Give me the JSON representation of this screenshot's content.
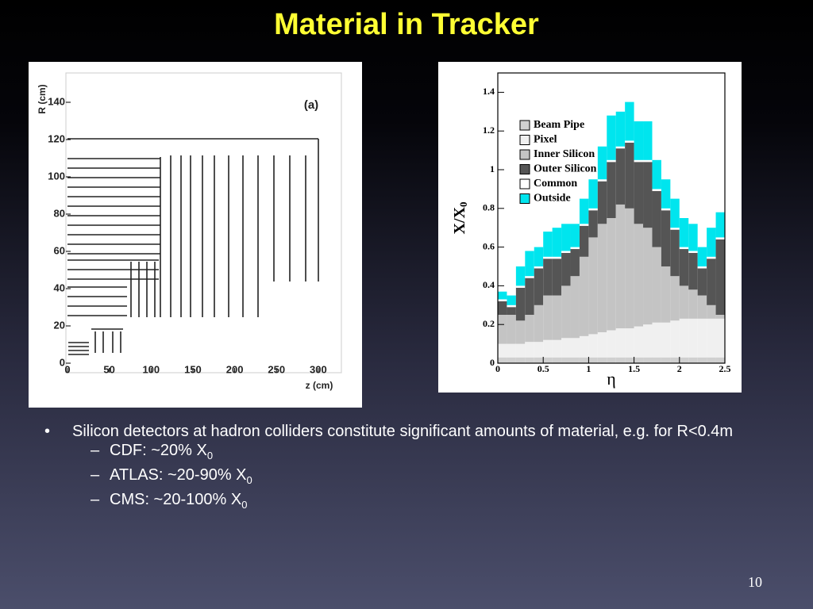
{
  "title": "Material in Tracker",
  "figure_a": {
    "panel_label": "(a)",
    "ylabel": "R (cm)",
    "xlabel": "z (cm)",
    "xticks": [
      0,
      50,
      100,
      150,
      200,
      250,
      300
    ],
    "yticks": [
      0,
      20,
      40,
      60,
      80,
      100,
      120,
      140
    ]
  },
  "chart_data": {
    "type": "histogram",
    "stacked": true,
    "xlabel": "η",
    "ylabel": {
      "main": "X/X",
      "sub": "0"
    },
    "bins": [
      0,
      0.1,
      0.2,
      0.3,
      0.4,
      0.5,
      0.6,
      0.7,
      0.8,
      0.9,
      1,
      1.1,
      1.2,
      1.3,
      1.4,
      1.5,
      1.6,
      1.7,
      1.8,
      1.9,
      2,
      2.1,
      2.2,
      2.3,
      2.4,
      2.5
    ],
    "xlim": [
      0,
      2.5
    ],
    "xticks": [
      0,
      0.5,
      1,
      1.5,
      2,
      2.5
    ],
    "ylim": [
      0,
      1.5
    ],
    "yticks": [
      0,
      0.2,
      0.4,
      0.6,
      0.8,
      1,
      1.2,
      1.4
    ],
    "legend": "upper left",
    "series": [
      {
        "name": "Beam Pipe",
        "color": "#d0d0d0",
        "values": [
          0.03,
          0.03,
          0.03,
          0.03,
          0.03,
          0.03,
          0.03,
          0.03,
          0.03,
          0.03,
          0.03,
          0.03,
          0.03,
          0.03,
          0.03,
          0.03,
          0.03,
          0.03,
          0.03,
          0.03,
          0.03,
          0.03,
          0.03,
          0.03,
          0.03
        ]
      },
      {
        "name": "Pixel",
        "color": "#f0f0f0",
        "values": [
          0.07,
          0.07,
          0.07,
          0.08,
          0.08,
          0.09,
          0.09,
          0.1,
          0.1,
          0.11,
          0.12,
          0.13,
          0.14,
          0.15,
          0.15,
          0.16,
          0.17,
          0.18,
          0.18,
          0.19,
          0.2,
          0.2,
          0.2,
          0.2,
          0.2
        ]
      },
      {
        "name": "Inner Silicon",
        "color": "#c4c4c4",
        "values": [
          0.15,
          0.15,
          0.12,
          0.14,
          0.19,
          0.23,
          0.23,
          0.27,
          0.32,
          0.41,
          0.5,
          0.56,
          0.58,
          0.64,
          0.62,
          0.53,
          0.5,
          0.39,
          0.29,
          0.23,
          0.17,
          0.15,
          0.12,
          0.07,
          0.02
        ]
      },
      {
        "name": "Outer Silicon",
        "color": "#555555",
        "values": [
          0.07,
          0.04,
          0.17,
          0.19,
          0.19,
          0.19,
          0.19,
          0.17,
          0.14,
          0.16,
          0.14,
          0.22,
          0.29,
          0.29,
          0.34,
          0.32,
          0.34,
          0.29,
          0.29,
          0.24,
          0.19,
          0.19,
          0.14,
          0.24,
          0.39
        ]
      },
      {
        "name": "Common",
        "color": "#ffffff",
        "values": [
          0.01,
          0.01,
          0.01,
          0.01,
          0.01,
          0.01,
          0.01,
          0.01,
          0.01,
          0.01,
          0.01,
          0.01,
          0.01,
          0.01,
          0.01,
          0.01,
          0.01,
          0.01,
          0.01,
          0.01,
          0.01,
          0.01,
          0.01,
          0.01,
          0.01
        ]
      },
      {
        "name": "Outside",
        "color": "#00e5ee",
        "values": [
          0.04,
          0.05,
          0.1,
          0.13,
          0.1,
          0.13,
          0.15,
          0.14,
          0.12,
          0.13,
          0.15,
          0.17,
          0.23,
          0.18,
          0.2,
          0.2,
          0.2,
          0.15,
          0.15,
          0.15,
          0.15,
          0.14,
          0.1,
          0.15,
          0.13
        ]
      }
    ]
  },
  "bullets": {
    "main": "Silicon detectors at hadron colliders constitute significant amounts of material, e.g. for R<0.4m",
    "sub": [
      {
        "text": "CDF: ~20% X",
        "sub": "0"
      },
      {
        "text": "ATLAS: ~20-90% X",
        "sub": "0"
      },
      {
        "text": "CMS: ~20-100% X",
        "sub": "0"
      }
    ]
  },
  "page_number": "10"
}
